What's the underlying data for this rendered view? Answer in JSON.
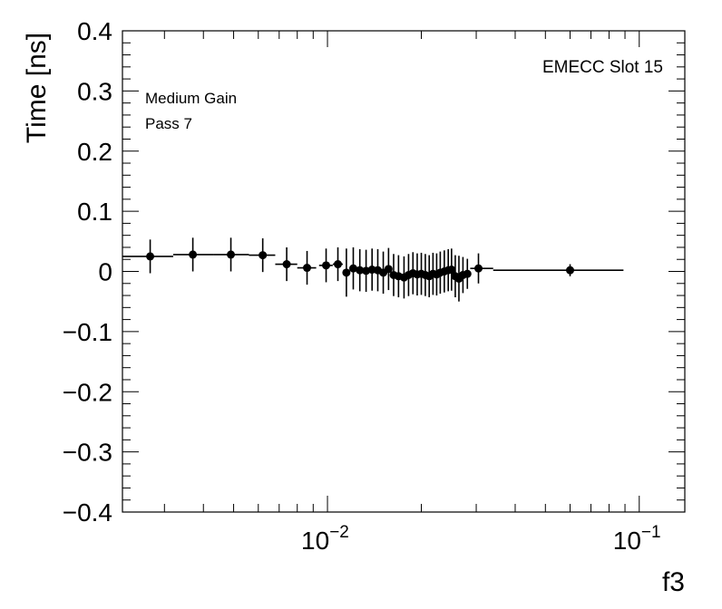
{
  "chart_data": {
    "type": "scatter",
    "xlabel": "f3",
    "ylabel": "Time [ns]",
    "xscale": "log",
    "xlim": [
      0.0022,
      0.14
    ],
    "ylim": [
      -0.4,
      0.4
    ],
    "grid": false,
    "annotations": {
      "top_right": "EMECC Slot 15",
      "top_left_line1": "Medium Gain",
      "top_left_line2": "Pass 7"
    },
    "y_ticks": [
      {
        "value": -0.4,
        "label": "−0.4"
      },
      {
        "value": -0.3,
        "label": "−0.3"
      },
      {
        "value": -0.2,
        "label": "−0.2"
      },
      {
        "value": -0.1,
        "label": "−0.1"
      },
      {
        "value": 0,
        "label": "0"
      },
      {
        "value": 0.1,
        "label": "0.1"
      },
      {
        "value": 0.2,
        "label": "0.2"
      },
      {
        "value": 0.3,
        "label": "0.3"
      },
      {
        "value": 0.4,
        "label": "0.4"
      }
    ],
    "x_ticks": [
      {
        "value": 0.01,
        "base": "10",
        "exp": "−2"
      },
      {
        "value": 0.1,
        "base": "10",
        "exp": "−1"
      }
    ],
    "points": [
      {
        "x": 0.0027,
        "y": 0.025,
        "xlo": 0.0022,
        "xhi": 0.0032,
        "yerr": 0.028
      },
      {
        "x": 0.0037,
        "y": 0.028,
        "xlo": 0.0032,
        "xhi": 0.0043,
        "yerr": 0.028
      },
      {
        "x": 0.0049,
        "y": 0.028,
        "xlo": 0.0043,
        "xhi": 0.0056,
        "yerr": 0.028
      },
      {
        "x": 0.0062,
        "y": 0.027,
        "xlo": 0.0056,
        "xhi": 0.0068,
        "yerr": 0.028
      },
      {
        "x": 0.0074,
        "y": 0.012,
        "xlo": 0.0068,
        "xhi": 0.008,
        "yerr": 0.028
      },
      {
        "x": 0.0086,
        "y": 0.006,
        "xlo": 0.008,
        "xhi": 0.0092,
        "yerr": 0.028
      },
      {
        "x": 0.0099,
        "y": 0.01,
        "xlo": 0.0094,
        "xhi": 0.0104,
        "yerr": 0.028
      },
      {
        "x": 0.0108,
        "y": 0.012,
        "xlo": 0.0104,
        "xhi": 0.0112,
        "yerr": 0.028
      },
      {
        "x": 0.0115,
        "y": -0.002,
        "xlo": 0.0112,
        "xhi": 0.0118,
        "yerr": 0.04
      },
      {
        "x": 0.0121,
        "y": 0.005,
        "xlo": 0.0118,
        "xhi": 0.0124,
        "yerr": 0.035
      },
      {
        "x": 0.0127,
        "y": 0.002,
        "xlo": 0.0124,
        "xhi": 0.013,
        "yerr": 0.035
      },
      {
        "x": 0.0133,
        "y": 0.001,
        "xlo": 0.013,
        "xhi": 0.0136,
        "yerr": 0.035
      },
      {
        "x": 0.0139,
        "y": 0.003,
        "xlo": 0.0136,
        "xhi": 0.0142,
        "yerr": 0.035
      },
      {
        "x": 0.0145,
        "y": 0.002,
        "xlo": 0.0142,
        "xhi": 0.0148,
        "yerr": 0.035
      },
      {
        "x": 0.0151,
        "y": -0.002,
        "xlo": 0.0148,
        "xhi": 0.0154,
        "yerr": 0.035
      },
      {
        "x": 0.0157,
        "y": 0.004,
        "xlo": 0.0154,
        "xhi": 0.016,
        "yerr": 0.035
      },
      {
        "x": 0.0163,
        "y": -0.006,
        "xlo": 0.016,
        "xhi": 0.0166,
        "yerr": 0.035
      },
      {
        "x": 0.0169,
        "y": -0.008,
        "xlo": 0.0166,
        "xhi": 0.0172,
        "yerr": 0.035
      },
      {
        "x": 0.0176,
        "y": -0.01,
        "xlo": 0.0172,
        "xhi": 0.0179,
        "yerr": 0.035
      },
      {
        "x": 0.0182,
        "y": -0.006,
        "xlo": 0.0179,
        "xhi": 0.0185,
        "yerr": 0.035
      },
      {
        "x": 0.0188,
        "y": -0.003,
        "xlo": 0.0185,
        "xhi": 0.0191,
        "yerr": 0.035
      },
      {
        "x": 0.0194,
        "y": -0.005,
        "xlo": 0.0191,
        "xhi": 0.0197,
        "yerr": 0.035
      },
      {
        "x": 0.02,
        "y": -0.004,
        "xlo": 0.0197,
        "xhi": 0.0203,
        "yerr": 0.035
      },
      {
        "x": 0.0206,
        "y": -0.006,
        "xlo": 0.0203,
        "xhi": 0.0209,
        "yerr": 0.035
      },
      {
        "x": 0.0212,
        "y": -0.008,
        "xlo": 0.0209,
        "xhi": 0.0215,
        "yerr": 0.035
      },
      {
        "x": 0.0218,
        "y": -0.004,
        "xlo": 0.0215,
        "xhi": 0.0221,
        "yerr": 0.035
      },
      {
        "x": 0.0224,
        "y": -0.005,
        "xlo": 0.0221,
        "xhi": 0.0227,
        "yerr": 0.035
      },
      {
        "x": 0.023,
        "y": -0.002,
        "xlo": 0.0227,
        "xhi": 0.0233,
        "yerr": 0.035
      },
      {
        "x": 0.0237,
        "y": 0.0,
        "xlo": 0.0233,
        "xhi": 0.024,
        "yerr": 0.035
      },
      {
        "x": 0.0244,
        "y": 0.002,
        "xlo": 0.024,
        "xhi": 0.0247,
        "yerr": 0.035
      },
      {
        "x": 0.025,
        "y": 0.003,
        "xlo": 0.0247,
        "xhi": 0.0253,
        "yerr": 0.035
      },
      {
        "x": 0.0257,
        "y": -0.008,
        "xlo": 0.0253,
        "xhi": 0.026,
        "yerr": 0.035
      },
      {
        "x": 0.0264,
        "y": -0.012,
        "xlo": 0.026,
        "xhi": 0.0268,
        "yerr": 0.038
      },
      {
        "x": 0.0272,
        "y": -0.006,
        "xlo": 0.0268,
        "xhi": 0.0276,
        "yerr": 0.03
      },
      {
        "x": 0.0281,
        "y": -0.004,
        "xlo": 0.0276,
        "xhi": 0.0287,
        "yerr": 0.025
      },
      {
        "x": 0.0305,
        "y": 0.005,
        "xlo": 0.0287,
        "xhi": 0.034,
        "yerr": 0.025
      },
      {
        "x": 0.06,
        "y": 0.002,
        "xlo": 0.034,
        "xhi": 0.089,
        "yerr": 0.01
      }
    ]
  }
}
